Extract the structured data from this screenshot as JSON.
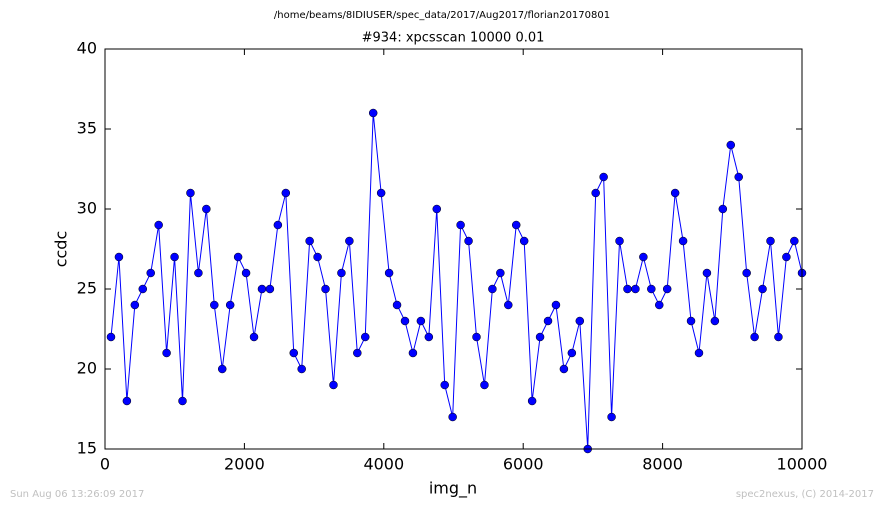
{
  "chart_data": {
    "type": "line",
    "subtitle": "/home/beams/8IDIUSER/spec_data/2017/Aug2017/florian20170801",
    "title": "#934: xpcsscan 10000 0.01",
    "xlabel": "img_n",
    "ylabel": "ccdc",
    "footer_left": "Sun Aug 06 13:26:09 2017",
    "footer_right": "spec2nexus, (C) 2014-2017",
    "x": [
      86,
      200,
      314,
      428,
      542,
      656,
      770,
      884,
      998,
      1112,
      1226,
      1340,
      1454,
      1568,
      1682,
      1796,
      1910,
      2024,
      2138,
      2252,
      2366,
      2480,
      2594,
      2708,
      2822,
      2936,
      3050,
      3164,
      3278,
      3392,
      3506,
      3620,
      3734,
      3848,
      3962,
      4076,
      4190,
      4304,
      4418,
      4532,
      4646,
      4760,
      4874,
      4988,
      5102,
      5216,
      5330,
      5444,
      5558,
      5672,
      5786,
      5900,
      6014,
      6128,
      6242,
      6356,
      6470,
      6584,
      6698,
      6812,
      6926,
      7040,
      7154,
      7268,
      7382,
      7496,
      7610,
      7724,
      7838,
      7952,
      8066,
      8180,
      8294,
      8408,
      8522,
      8636,
      8750,
      8864,
      8978,
      9092,
      9206,
      9320,
      9434,
      9548,
      9662,
      9776,
      9890,
      10000
    ],
    "series": [
      {
        "color": "#0000ff",
        "values": [
          22,
          27,
          18,
          24,
          25,
          26,
          29,
          21,
          27,
          18,
          31,
          26,
          30,
          24,
          20,
          24,
          27,
          26,
          22,
          25,
          25,
          29,
          31,
          21,
          20,
          28,
          27,
          25,
          19,
          26,
          28,
          21,
          22,
          36,
          31,
          26,
          24,
          23,
          21,
          23,
          22,
          30,
          19,
          17,
          29,
          28,
          22,
          19,
          25,
          26,
          24,
          29,
          28,
          18,
          22,
          23,
          24,
          20,
          21,
          23,
          15,
          31,
          32,
          17,
          28,
          25,
          25,
          27,
          25,
          24,
          25,
          31,
          28,
          23,
          21,
          26,
          23,
          30,
          34,
          32,
          26,
          22,
          25,
          28,
          22,
          27,
          28,
          26
        ]
      }
    ],
    "xlim": [
      0,
      10000
    ],
    "xticks": [
      0,
      2000,
      4000,
      6000,
      8000,
      10000
    ],
    "ylim": [
      15,
      40
    ],
    "yticks": [
      15,
      20,
      25,
      30,
      35,
      40
    ]
  }
}
